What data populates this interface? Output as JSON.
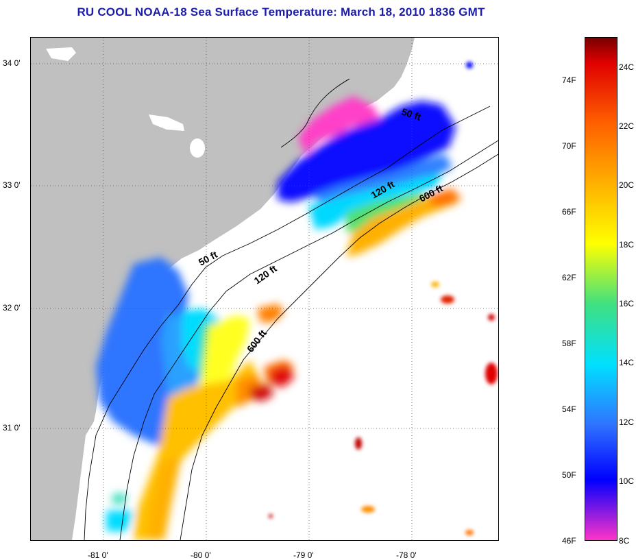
{
  "title": "RU COOL  NOAA-18  Sea Surface Temperature:  March 18, 2010 1836 GMT",
  "latitude_labels": [
    "34 0'",
    "33 0'",
    "32 0'",
    "31 0'"
  ],
  "longitude_labels": [
    "-81 0'",
    "-80 0'",
    "-79 0'",
    "-78 0'"
  ],
  "contour_labels": {
    "north_50": "50 ft",
    "north_120": "120 ft",
    "north_600": "600 ft",
    "south_50": "50 ft",
    "south_120": "120 ft",
    "south_600": "600 ft"
  },
  "legend": {
    "fahrenheit": [
      "74F",
      "70F",
      "66F",
      "62F",
      "58F",
      "54F",
      "50F",
      "46F"
    ],
    "celsius": [
      "24C",
      "22C",
      "20C",
      "18C",
      "16C",
      "14C",
      "12C",
      "10C",
      "8C"
    ],
    "colors": {
      "c8": "#ff33c8",
      "c10": "#0000ff",
      "c12": "#2f74ff",
      "c14": "#00e0ff",
      "c16": "#40e080",
      "c18": "#ffff00",
      "c20": "#ffb000",
      "c22": "#ff6000",
      "c24": "#e00000",
      "c25": "#780000"
    }
  },
  "colors": {
    "land": "#c0c0c0",
    "ocean_no_data": "#ffffff",
    "title": "#1c1caa"
  }
}
